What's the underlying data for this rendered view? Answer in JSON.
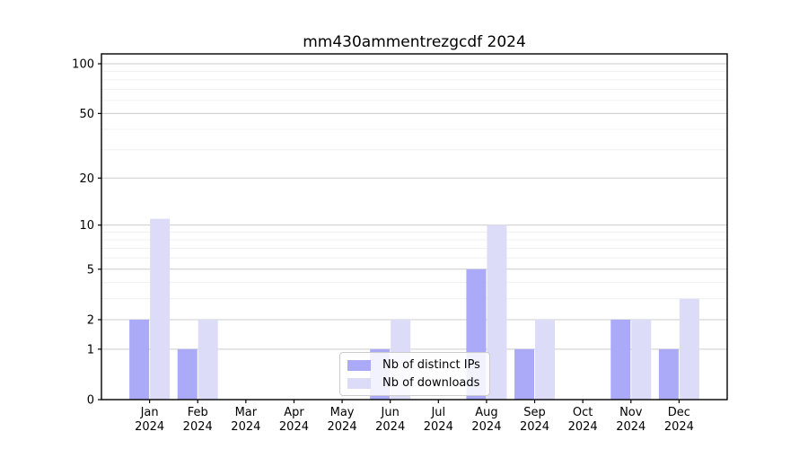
{
  "title": "mm430ammentrezgcdf 2024",
  "colors": {
    "bar_distinct_ips": "#aaaaf8",
    "bar_downloads": "#dcdcf8",
    "grid_major": "#cccccc",
    "grid_minor": "#f0f0f0",
    "axis": "#000000",
    "legend_border": "#cccccc"
  },
  "legend": {
    "items": [
      {
        "label": "Nb of distinct IPs",
        "color_key": "bar_distinct_ips"
      },
      {
        "label": "Nb of downloads",
        "color_key": "bar_downloads"
      }
    ]
  },
  "chart_data": {
    "type": "bar",
    "title": "mm430ammentrezgcdf 2024",
    "categories": [
      "Jan 2024",
      "Feb 2024",
      "Mar 2024",
      "Apr 2024",
      "May 2024",
      "Jun 2024",
      "Jul 2024",
      "Aug 2024",
      "Sep 2024",
      "Oct 2024",
      "Nov 2024",
      "Dec 2024"
    ],
    "series": [
      {
        "name": "Nb of distinct IPs",
        "values": [
          2,
          1,
          0,
          0,
          0,
          1,
          0,
          5,
          1,
          0,
          2,
          1
        ]
      },
      {
        "name": "Nb of downloads",
        "values": [
          11,
          2,
          0,
          0,
          0,
          2,
          0,
          10,
          2,
          0,
          2,
          3
        ]
      }
    ],
    "xlabel": "",
    "ylabel": "",
    "yscale": "log10(1+v)",
    "yticks": [
      0,
      1,
      2,
      5,
      10,
      20,
      50,
      100
    ],
    "yticks_minor": [
      3,
      4,
      6,
      7,
      8,
      9,
      30,
      40,
      60,
      70,
      80,
      90
    ],
    "ylim": [
      0,
      115
    ],
    "grid": true,
    "legend_position": "lower center"
  }
}
